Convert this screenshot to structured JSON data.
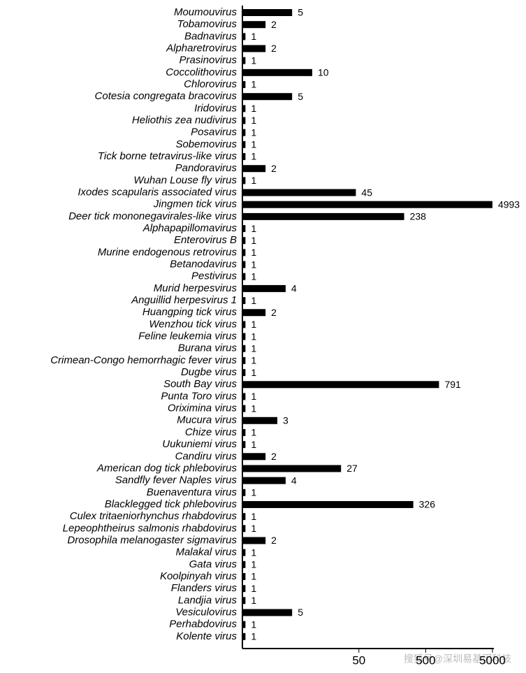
{
  "chart_data": {
    "type": "bar",
    "orientation": "horizontal",
    "log_scale": true,
    "color": "#000000",
    "categories": [
      "Moumouvirus",
      "Tobamovirus",
      "Badnavirus",
      "Alpharetrovirus",
      "Prasinovirus",
      "Coccolithovirus",
      "Chlorovirus",
      "Cotesia congregata bracovirus",
      "Iridovirus",
      "Heliothis zea nudivirus",
      "Posavirus",
      "Sobemovirus",
      "Tick borne tetravirus-like virus",
      "Pandoravirus",
      "Wuhan Louse fly virus",
      "Ixodes scapularis associated virus",
      "Jingmen tick virus",
      "Deer tick mononegavirales-like virus",
      "Alphapapillomavirus",
      "Enterovirus B",
      "Murine endogenous retrovirus",
      "Betanodavirus",
      "Pestivirus",
      "Murid herpesvirus",
      "Anguillid herpesvirus 1",
      "Huangping tick virus",
      "Wenzhou tick virus",
      "Feline leukemia virus",
      "Burana virus",
      "Crimean-Congo hemorrhagic fever virus",
      "Dugbe virus",
      "South Bay virus",
      "Punta Toro virus",
      "Oriximina virus",
      "Mucura virus",
      "Chize virus",
      "Uukuniemi virus",
      "Candiru virus",
      "American dog tick phlebovirus",
      "Sandfly fever Naples virus",
      "Buenaventura virus",
      "Blacklegged tick phlebovirus",
      "Culex tritaeniorhynchus rhabdovirus",
      "Lepeophtheirus salmonis rhabdovirus",
      "Drosophila melanogaster sigmavirus",
      "Malakal virus",
      "Gata virus",
      "Koolpinyah virus",
      "Flanders virus",
      "Landjia virus",
      "Vesiculovirus",
      "Perhabdovirus",
      "Kolente virus"
    ],
    "values": [
      5,
      2,
      1,
      2,
      1,
      10,
      1,
      5,
      1,
      1,
      1,
      1,
      1,
      2,
      1,
      45,
      4993,
      238,
      1,
      1,
      1,
      1,
      1,
      4,
      1,
      2,
      1,
      1,
      1,
      1,
      1,
      791,
      1,
      1,
      3,
      1,
      1,
      2,
      27,
      4,
      1,
      326,
      1,
      1,
      2,
      1,
      1,
      1,
      1,
      1,
      5,
      1,
      1
    ],
    "xlim": [
      0.9,
      5000
    ],
    "xticks": [
      50,
      500,
      5000
    ]
  },
  "watermark": "搜狐号@深圳易基因科技"
}
